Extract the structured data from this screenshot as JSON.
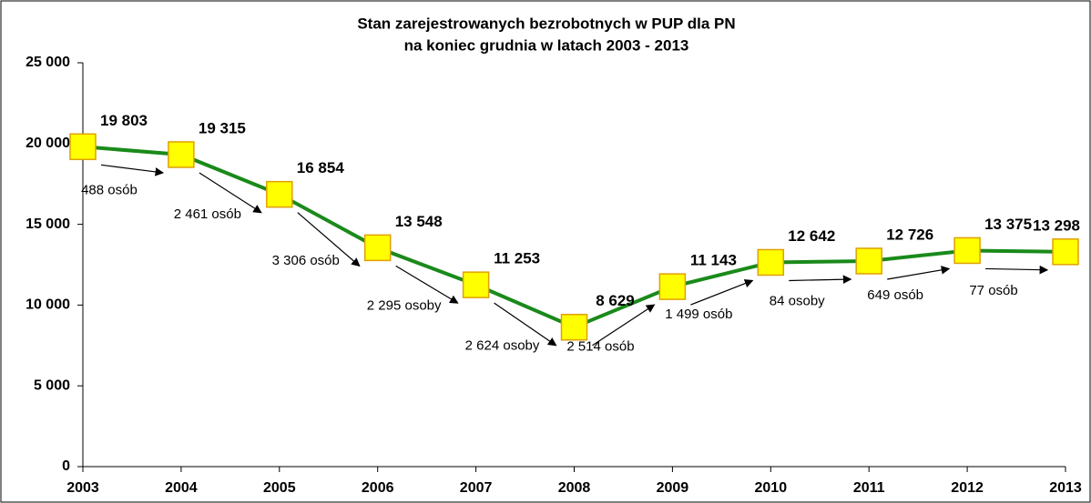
{
  "chart_data": {
    "type": "line",
    "title": [
      "Stan zarejestrowanych bezrobotnych w PUP dla PN",
      "na koniec grudnia w latach 2003 - 2013"
    ],
    "categories": [
      "2003",
      "2004",
      "2005",
      "2006",
      "2007",
      "2008",
      "2009",
      "2010",
      "2011",
      "2012",
      "2013"
    ],
    "series": [
      {
        "name": "Bezrobotni",
        "color": "#1a8a1a",
        "marker_color": "#ffff00",
        "marker_edge": "#e0a000",
        "values": [
          19803,
          19315,
          16854,
          13548,
          11253,
          8629,
          11143,
          12642,
          12726,
          13375,
          13298
        ],
        "value_labels": [
          "19 803",
          "19 315",
          "16 854",
          "13 548",
          "11 253",
          "8 629",
          "11 143",
          "12 642",
          "12 726",
          "13 375",
          "13 298"
        ]
      }
    ],
    "annotations": [
      "488 osób",
      "2 461 osób",
      "3 306 osób",
      "2 295 osoby",
      "2 624 osoby",
      "2 514 osób",
      "1 499 osób",
      "84 osoby",
      "649 osób",
      "77 osób"
    ],
    "ylim": [
      0,
      25000
    ],
    "yticks": [
      0,
      {
        "value": 5000,
        "label": "5 000"
      },
      {
        "value": 10000,
        "label": "10 000"
      },
      {
        "value": 15000,
        "label": "15 000"
      },
      {
        "value": 20000,
        "label": "20 000"
      },
      {
        "value": 25000,
        "label": "25 000"
      }
    ],
    "grid": false
  }
}
